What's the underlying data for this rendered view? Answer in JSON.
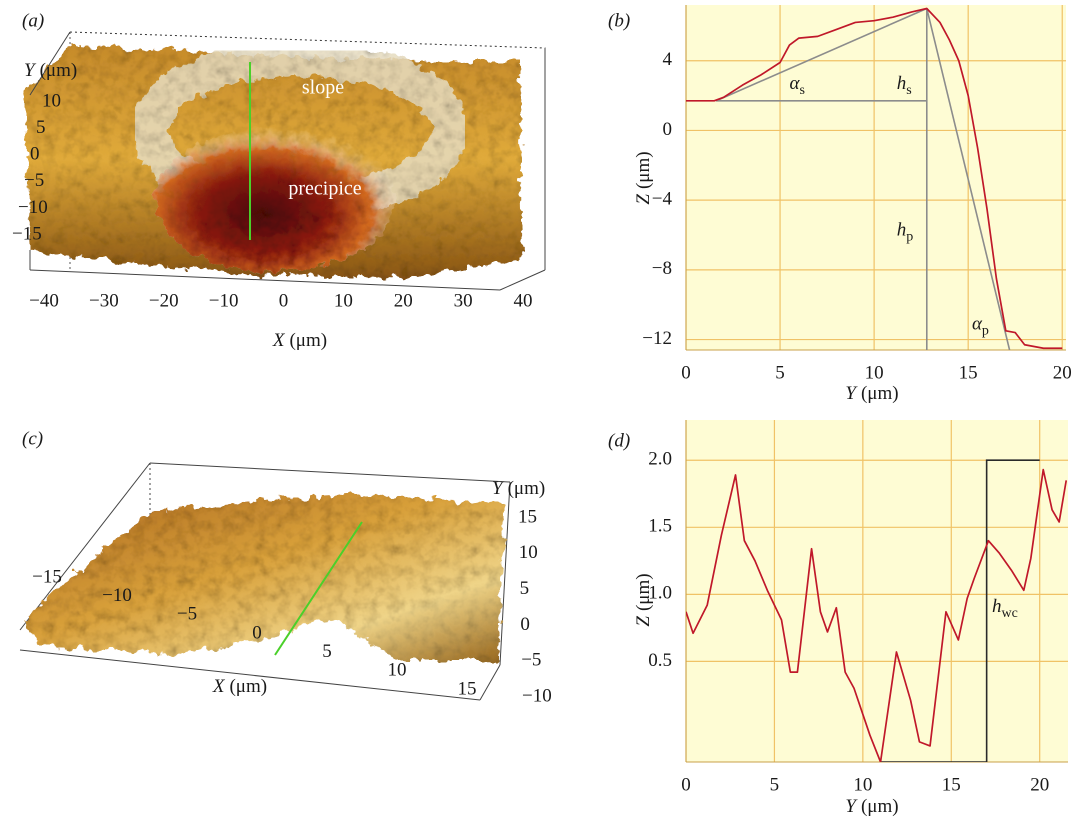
{
  "chart_data": [
    {
      "type": "surface3d",
      "panel": "(a)",
      "xlabel": {
        "symbol": "X",
        "unit": "(μm)"
      },
      "ylabel": {
        "symbol": "Y",
        "unit": "(μm)"
      },
      "xticks": [
        {
          "value": -40,
          "label": "−40"
        },
        {
          "value": -30,
          "label": "−30"
        },
        {
          "value": -20,
          "label": "−20"
        },
        {
          "value": -10,
          "label": "−10"
        },
        0,
        10,
        20,
        30,
        40
      ],
      "yticks": [
        {
          "value": -15,
          "label": "−15"
        },
        {
          "value": -10,
          "label": "−10"
        },
        {
          "value": -5,
          "label": "−5"
        },
        0,
        5,
        10
      ],
      "annotations": [
        "slope",
        "precipice"
      ]
    },
    {
      "type": "line",
      "panel": "(b)",
      "xlabel": {
        "symbol": "Y",
        "unit": "(μm)"
      },
      "ylabel": {
        "symbol": "Z",
        "unit": "(μm)"
      },
      "xlim": [
        0,
        20.2
      ],
      "ylim": [
        -12.6,
        7.2
      ],
      "xticks": [
        0,
        5,
        10,
        15,
        20
      ],
      "yticks": [
        {
          "value": -12,
          "label": "−12"
        },
        {
          "value": -8,
          "label": "−8"
        },
        {
          "value": -4,
          "label": "−4"
        },
        0,
        4
      ],
      "grid": true,
      "series": [
        {
          "color": "#c0182a",
          "x": [
            0,
            1.5,
            2,
            3,
            4,
            5,
            5.5,
            6,
            7,
            8,
            9,
            10,
            11,
            12,
            12.8,
            13.5,
            14,
            14.5,
            15,
            15.5,
            16,
            16.5,
            17,
            17.5,
            18,
            19,
            20
          ],
          "values": [
            1.7,
            1.7,
            1.9,
            2.6,
            3.2,
            3.9,
            4.9,
            5.3,
            5.4,
            5.8,
            6.2,
            6.3,
            6.5,
            6.8,
            7.0,
            6.2,
            5.2,
            4.0,
            2.0,
            -1.0,
            -4.5,
            -8.5,
            -11.5,
            -11.6,
            -12.3,
            -12.5,
            -12.5
          ]
        }
      ],
      "guides": {
        "color": "#8c8c8c",
        "lines": [
          {
            "x": [
              1.6,
              12.8
            ],
            "y": [
              1.7,
              7.0
            ]
          },
          {
            "x": [
              1.6,
              12.8
            ],
            "y": [
              1.7,
              1.7
            ]
          },
          {
            "x": [
              12.8,
              12.8
            ],
            "y": [
              7.0,
              -12.6
            ]
          },
          {
            "x": [
              12.8,
              17.2
            ],
            "y": [
              7.0,
              -12.6
            ]
          }
        ]
      },
      "annotations": [
        {
          "symbol": "α",
          "sub": "s",
          "x": 5.5,
          "y": 2.6
        },
        {
          "symbol": "h",
          "sub": "s",
          "x": 11.2,
          "y": 2.6
        },
        {
          "symbol": "h",
          "sub": "p",
          "x": 11.2,
          "y": -5.8
        },
        {
          "symbol": "α",
          "sub": "p",
          "x": 15.2,
          "y": -11.2
        }
      ]
    },
    {
      "type": "surface3d",
      "panel": "(c)",
      "xlabel": {
        "symbol": "X",
        "unit": "(μm)"
      },
      "ylabel": {
        "symbol": "Y",
        "unit": "(μm)"
      },
      "xticks": [
        {
          "value": -15,
          "label": "−15"
        },
        {
          "value": -10,
          "label": "−10"
        },
        {
          "value": -5,
          "label": "−5"
        },
        0,
        5,
        10,
        15
      ],
      "yticks": [
        {
          "value": -10,
          "label": "−10"
        },
        {
          "value": -5,
          "label": "−5"
        },
        0,
        5,
        10,
        15
      ],
      "annotations": []
    },
    {
      "type": "line",
      "panel": "(d)",
      "xlabel": {
        "symbol": "Y",
        "unit": "(μm)"
      },
      "ylabel": {
        "symbol": "Z",
        "unit": "(μm)"
      },
      "xlim": [
        0,
        21.6
      ],
      "ylim": [
        -0.25,
        2.3
      ],
      "xticks": [
        0,
        5,
        10,
        15,
        20
      ],
      "yticks": [
        0.5,
        {
          "value": 1.0,
          "label": "1.0"
        },
        1.5,
        {
          "value": 2.0,
          "label": "2.0"
        }
      ],
      "grid": true,
      "series": [
        {
          "color": "#c0182a",
          "x": [
            0,
            0.4,
            1.2,
            2,
            2.8,
            3.3,
            3.9,
            4.6,
            5.4,
            5.9,
            6.3,
            7.1,
            7.6,
            8.0,
            8.5,
            9.0,
            9.5,
            10.4,
            11.0,
            11.9,
            12.7,
            13.2,
            13.8,
            14.7,
            15.4,
            15.9,
            16.3,
            17.1,
            17.7,
            18.4,
            19.1,
            19.5,
            20.2,
            20.7,
            21.1,
            21.5
          ],
          "values": [
            0.87,
            0.71,
            0.92,
            1.44,
            1.89,
            1.4,
            1.25,
            1.03,
            0.81,
            0.42,
            0.42,
            1.34,
            0.87,
            0.72,
            0.9,
            0.42,
            0.3,
            -0.05,
            -0.25,
            0.57,
            0.21,
            -0.1,
            -0.13,
            0.87,
            0.66,
            0.97,
            1.12,
            1.4,
            1.31,
            1.18,
            1.03,
            1.27,
            1.93,
            1.63,
            1.54,
            1.85
          ]
        }
      ],
      "guides": {
        "color": "#2a2a2a",
        "lines": [
          {
            "x": [
              11,
              17,
              17,
              20
            ],
            "y": [
              -0.25,
              -0.25,
              2.0,
              2.0
            ]
          }
        ]
      },
      "annotations": [
        {
          "symbol": "h",
          "sub": "wc",
          "x": 17.3,
          "y": 0.9
        }
      ]
    }
  ]
}
